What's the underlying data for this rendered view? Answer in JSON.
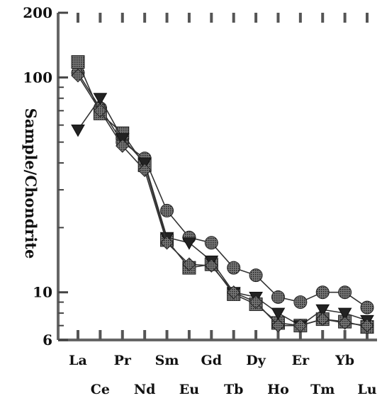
{
  "chart_data": {
    "type": "line",
    "ylabel": "Sample/Chondrite",
    "xlabel": "",
    "y_scale": "log",
    "ylim": [
      6,
      200
    ],
    "y_ticks": [
      {
        "value": 200,
        "label": "200"
      },
      {
        "value": 100,
        "label": "100"
      },
      {
        "value": 10,
        "label": "10"
      },
      {
        "value": 6,
        "label": "6"
      }
    ],
    "categories": [
      "La",
      "Ce",
      "Pr",
      "Nd",
      "Sm",
      "Eu",
      "Gd",
      "Tb",
      "Dy",
      "Ho",
      "Er",
      "Tm",
      "Yb",
      "Lu"
    ],
    "grid": false,
    "legend": "none",
    "series": [
      {
        "marker": "circle",
        "color": "#4a4a4a",
        "values": [
          105,
          72,
          50,
          42,
          24,
          18,
          17,
          13,
          12,
          9.5,
          9.0,
          10,
          10,
          8.5
        ]
      },
      {
        "marker": "square",
        "color": "#3a3a3a",
        "values": [
          118,
          68,
          55,
          39,
          17.5,
          13,
          13.5,
          9.8,
          8.8,
          7.2,
          7.0,
          7.5,
          7.3,
          6.9
        ]
      },
      {
        "marker": "triangle",
        "color": "#2e2e2e",
        "values": [
          57,
          80,
          52,
          40,
          18,
          17,
          14,
          10,
          9.5,
          8.0,
          7.0,
          8.3,
          8.0,
          7.4
        ]
      },
      {
        "marker": "diamond",
        "color": "#555555",
        "values": [
          102,
          70,
          48,
          37,
          17,
          13.5,
          13.3,
          10,
          9.0,
          7.0,
          7.0,
          7.5,
          7.2,
          7.0
        ]
      }
    ]
  }
}
